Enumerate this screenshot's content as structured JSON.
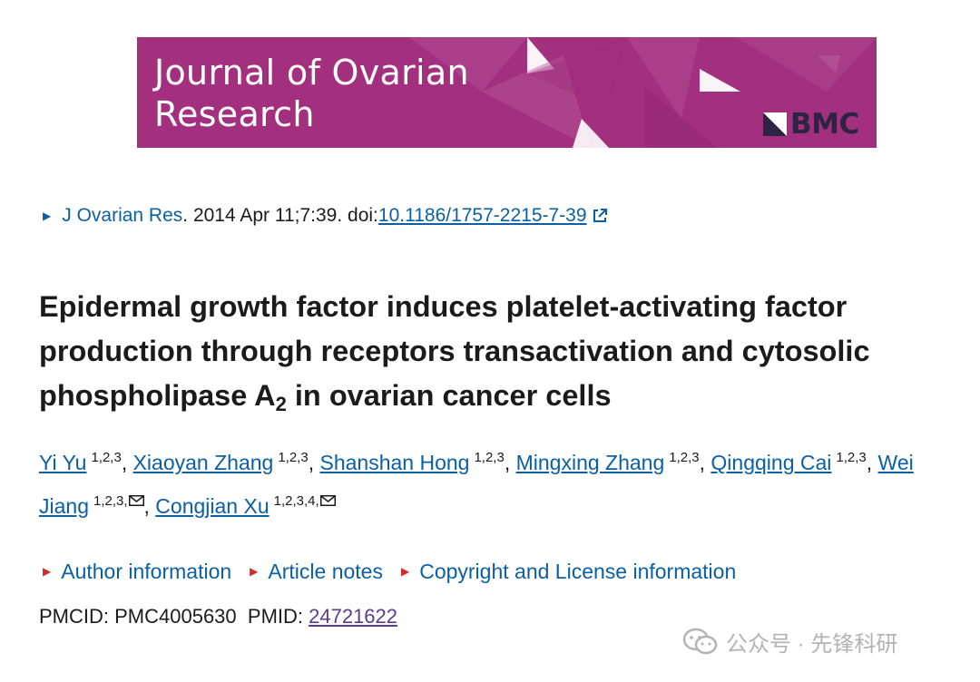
{
  "banner": {
    "journal_name": "Journal of Ovarian\nResearch",
    "publisher_logo_text": "BMC",
    "background_color": "#a3307f"
  },
  "citation": {
    "journal_link": "J Ovarian Res",
    "details": ". 2014 Apr 11;7:39. doi: ",
    "doi": "10.1186/1757-2215-7-39"
  },
  "article": {
    "title_line1": "Epidermal growth factor induces platelet-activating factor",
    "title_line2": "production through receptors transactivation and cytosolic",
    "title_line3_pre": "phospholipase A",
    "title_line3_sub": "2",
    "title_line3_post": " in ovarian cancer cells"
  },
  "authors": [
    {
      "name": "Yi Yu",
      "affil": "1,2,3"
    },
    {
      "name": "Xiaoyan Zhang",
      "affil": "1,2,3"
    },
    {
      "name": "Shanshan Hong",
      "affil": "1,2,3"
    },
    {
      "name": "Mingxing Zhang",
      "affil": "1,2,3"
    },
    {
      "name": "Qingqing Cai",
      "affil": "1,2,3"
    },
    {
      "name_part1": "Wei",
      "name_part2": "Jiang",
      "affil": "1,2,3,"
    },
    {
      "name": "Congjian Xu",
      "affil": "1,2,3,4,"
    }
  ],
  "author_separator": ", ",
  "sections": [
    {
      "label": "Author information"
    },
    {
      "label": "Article notes"
    },
    {
      "label": "Copyright and License information"
    }
  ],
  "ids": {
    "pmcid_label": "PMCID: PMC4005630",
    "pmid_label": "PMID: ",
    "pmid": "24721622"
  },
  "watermark": {
    "text": "公众号 · 先锋科研"
  },
  "colors": {
    "link": "#0b5fa5",
    "visited_link": "#5b3a92",
    "section_arrow": "#d42a2a"
  },
  "icons": [
    "external-link-icon",
    "mail-icon",
    "wechat-icon",
    "bmc-logo-icon"
  ]
}
